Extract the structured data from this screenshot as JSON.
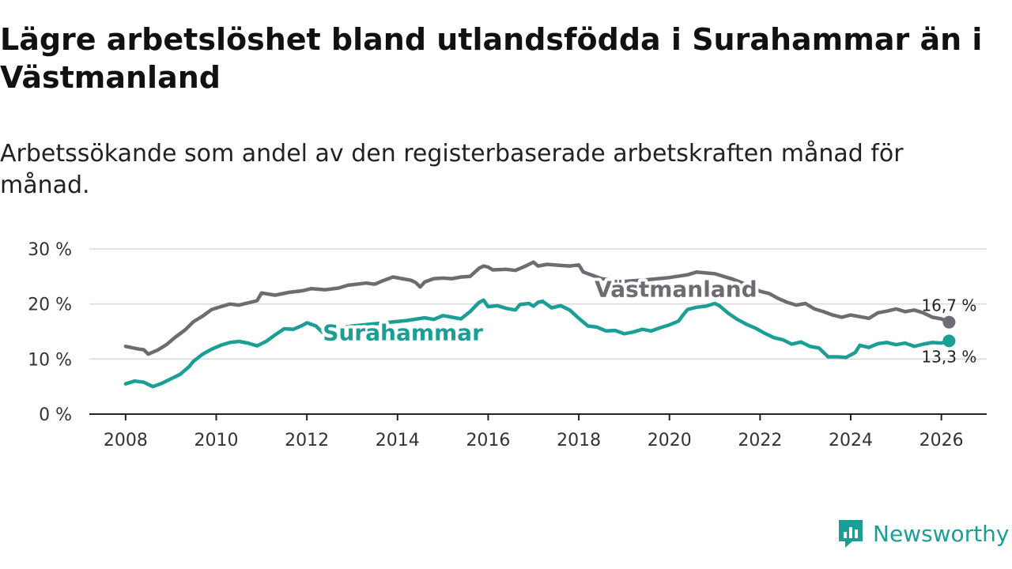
{
  "title": "Lägre arbetslöshet bland utlandsfödda i Surahammar än i Västmanland",
  "subtitle": "Arbetssökande som andel av den registerbaserade arbetskraften månad för månad.",
  "brand": {
    "name": "Newsworthy",
    "icon": "newsworthy-logo-icon",
    "color": "#1a9e96"
  },
  "chart_data": {
    "type": "line",
    "title": "Lägre arbetslöshet bland utlandsfödda i Surahammar än i Västmanland",
    "subtitle": "Arbetssökande som andel av den registerbaserade arbetskraften månad för månad.",
    "xlabel": "",
    "ylabel": "",
    "x_range": [
      2007.2,
      2027.0
    ],
    "ylim": [
      0,
      30
    ],
    "yticks": [
      0,
      10,
      20,
      30
    ],
    "ytick_labels": [
      "0 %",
      "10 %",
      "20 %",
      "30 %"
    ],
    "xticks": [
      2008,
      2010,
      2012,
      2014,
      2016,
      2018,
      2020,
      2022,
      2024,
      2026
    ],
    "xtick_labels": [
      "2008",
      "2010",
      "2012",
      "2014",
      "2016",
      "2018",
      "2020",
      "2022",
      "2024",
      "2026"
    ],
    "grid": "horizontal",
    "series": [
      {
        "name": "Västmanland",
        "color": "#6e6c73",
        "end_label": "16,7 %",
        "points": [
          [
            2008.0,
            12.3
          ],
          [
            2008.3,
            11.8
          ],
          [
            2008.4,
            11.7
          ],
          [
            2008.5,
            10.9
          ],
          [
            2008.7,
            11.6
          ],
          [
            2008.9,
            12.6
          ],
          [
            2009.1,
            14.0
          ],
          [
            2009.3,
            15.2
          ],
          [
            2009.5,
            16.8
          ],
          [
            2009.7,
            17.8
          ],
          [
            2009.9,
            19.0
          ],
          [
            2010.1,
            19.5
          ],
          [
            2010.3,
            20.0
          ],
          [
            2010.5,
            19.8
          ],
          [
            2010.7,
            20.2
          ],
          [
            2010.9,
            20.6
          ],
          [
            2011.0,
            22.0
          ],
          [
            2011.3,
            21.6
          ],
          [
            2011.6,
            22.1
          ],
          [
            2011.9,
            22.4
          ],
          [
            2012.1,
            22.8
          ],
          [
            2012.4,
            22.6
          ],
          [
            2012.7,
            22.9
          ],
          [
            2012.9,
            23.4
          ],
          [
            2013.1,
            23.6
          ],
          [
            2013.3,
            23.8
          ],
          [
            2013.5,
            23.6
          ],
          [
            2013.7,
            24.3
          ],
          [
            2013.9,
            24.9
          ],
          [
            2014.1,
            24.6
          ],
          [
            2014.3,
            24.3
          ],
          [
            2014.4,
            23.9
          ],
          [
            2014.5,
            23.1
          ],
          [
            2014.6,
            24.0
          ],
          [
            2014.8,
            24.6
          ],
          [
            2015.0,
            24.7
          ],
          [
            2015.2,
            24.6
          ],
          [
            2015.4,
            24.9
          ],
          [
            2015.6,
            25.0
          ],
          [
            2015.8,
            26.5
          ],
          [
            2015.9,
            26.9
          ],
          [
            2016.0,
            26.7
          ],
          [
            2016.1,
            26.2
          ],
          [
            2016.4,
            26.3
          ],
          [
            2016.6,
            26.1
          ],
          [
            2016.8,
            26.8
          ],
          [
            2016.9,
            27.2
          ],
          [
            2017.0,
            27.6
          ],
          [
            2017.1,
            26.9
          ],
          [
            2017.3,
            27.2
          ],
          [
            2017.6,
            27.0
          ],
          [
            2017.8,
            26.9
          ],
          [
            2018.0,
            27.1
          ],
          [
            2018.1,
            25.8
          ],
          [
            2018.3,
            25.2
          ],
          [
            2018.5,
            24.6
          ],
          [
            2019.0,
            24.1
          ],
          [
            2019.5,
            24.4
          ],
          [
            2020.0,
            24.8
          ],
          [
            2020.4,
            25.3
          ],
          [
            2020.6,
            25.8
          ],
          [
            2021.0,
            25.5
          ],
          [
            2021.4,
            24.5
          ],
          [
            2021.8,
            23.2
          ],
          [
            2022.0,
            22.3
          ],
          [
            2022.2,
            21.9
          ],
          [
            2022.4,
            21.0
          ],
          [
            2022.6,
            20.3
          ],
          [
            2022.8,
            19.8
          ],
          [
            2023.0,
            20.1
          ],
          [
            2023.2,
            19.1
          ],
          [
            2023.4,
            18.6
          ],
          [
            2023.6,
            18.0
          ],
          [
            2023.8,
            17.6
          ],
          [
            2024.0,
            18.0
          ],
          [
            2024.2,
            17.7
          ],
          [
            2024.4,
            17.4
          ],
          [
            2024.6,
            18.4
          ],
          [
            2024.8,
            18.7
          ],
          [
            2025.0,
            19.1
          ],
          [
            2025.2,
            18.6
          ],
          [
            2025.4,
            18.9
          ],
          [
            2025.6,
            18.4
          ],
          [
            2025.8,
            17.6
          ],
          [
            2026.0,
            17.3
          ],
          [
            2026.17,
            16.7
          ]
        ]
      },
      {
        "name": "Surahammar",
        "color": "#1a9e96",
        "end_label": "13,3 %",
        "points": [
          [
            2008.0,
            5.5
          ],
          [
            2008.2,
            6.0
          ],
          [
            2008.4,
            5.8
          ],
          [
            2008.6,
            5.0
          ],
          [
            2008.8,
            5.6
          ],
          [
            2009.0,
            6.4
          ],
          [
            2009.2,
            7.2
          ],
          [
            2009.4,
            8.6
          ],
          [
            2009.5,
            9.6
          ],
          [
            2009.7,
            10.9
          ],
          [
            2009.9,
            11.8
          ],
          [
            2010.1,
            12.5
          ],
          [
            2010.3,
            13.0
          ],
          [
            2010.5,
            13.2
          ],
          [
            2010.7,
            12.9
          ],
          [
            2010.9,
            12.4
          ],
          [
            2011.1,
            13.2
          ],
          [
            2011.3,
            14.4
          ],
          [
            2011.5,
            15.5
          ],
          [
            2011.7,
            15.4
          ],
          [
            2011.9,
            16.1
          ],
          [
            2012.0,
            16.6
          ],
          [
            2012.2,
            16.0
          ],
          [
            2012.35,
            14.8
          ],
          [
            2012.6,
            15.5
          ],
          [
            2013.0,
            16.0
          ],
          [
            2013.6,
            16.5
          ],
          [
            2014.2,
            17.0
          ],
          [
            2014.6,
            17.5
          ],
          [
            2014.8,
            17.2
          ],
          [
            2015.0,
            17.9
          ],
          [
            2015.2,
            17.6
          ],
          [
            2015.4,
            17.3
          ],
          [
            2015.6,
            18.6
          ],
          [
            2015.8,
            20.3
          ],
          [
            2015.9,
            20.7
          ],
          [
            2016.0,
            19.5
          ],
          [
            2016.2,
            19.7
          ],
          [
            2016.4,
            19.2
          ],
          [
            2016.6,
            18.9
          ],
          [
            2016.7,
            19.9
          ],
          [
            2016.9,
            20.1
          ],
          [
            2017.0,
            19.6
          ],
          [
            2017.1,
            20.3
          ],
          [
            2017.2,
            20.5
          ],
          [
            2017.4,
            19.3
          ],
          [
            2017.6,
            19.7
          ],
          [
            2017.8,
            18.9
          ],
          [
            2018.0,
            17.4
          ],
          [
            2018.2,
            16.0
          ],
          [
            2018.4,
            15.8
          ],
          [
            2018.6,
            15.1
          ],
          [
            2018.8,
            15.2
          ],
          [
            2019.0,
            14.6
          ],
          [
            2019.2,
            14.9
          ],
          [
            2019.4,
            15.4
          ],
          [
            2019.6,
            15.1
          ],
          [
            2019.8,
            15.7
          ],
          [
            2020.0,
            16.2
          ],
          [
            2020.2,
            16.9
          ],
          [
            2020.3,
            18.0
          ],
          [
            2020.4,
            19.0
          ],
          [
            2020.6,
            19.4
          ],
          [
            2020.8,
            19.6
          ],
          [
            2021.0,
            20.1
          ],
          [
            2021.1,
            19.7
          ],
          [
            2021.3,
            18.3
          ],
          [
            2021.5,
            17.2
          ],
          [
            2021.7,
            16.3
          ],
          [
            2021.9,
            15.6
          ],
          [
            2022.1,
            14.7
          ],
          [
            2022.3,
            13.9
          ],
          [
            2022.5,
            13.5
          ],
          [
            2022.7,
            12.7
          ],
          [
            2022.9,
            13.1
          ],
          [
            2023.1,
            12.3
          ],
          [
            2023.3,
            12.0
          ],
          [
            2023.5,
            10.4
          ],
          [
            2023.7,
            10.4
          ],
          [
            2023.9,
            10.3
          ],
          [
            2024.1,
            11.2
          ],
          [
            2024.2,
            12.5
          ],
          [
            2024.4,
            12.1
          ],
          [
            2024.6,
            12.8
          ],
          [
            2024.8,
            13.0
          ],
          [
            2025.0,
            12.6
          ],
          [
            2025.2,
            12.9
          ],
          [
            2025.4,
            12.3
          ],
          [
            2025.6,
            12.7
          ],
          [
            2025.8,
            13.0
          ],
          [
            2026.0,
            12.9
          ],
          [
            2026.17,
            13.3
          ]
        ]
      }
    ]
  }
}
